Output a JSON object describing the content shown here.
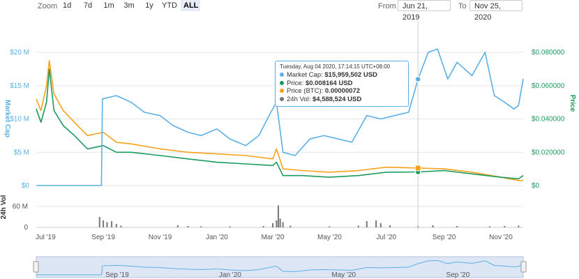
{
  "toolbar": {
    "zoom_label": "Zoom",
    "zoom_buttons": [
      "1d",
      "7d",
      "1m",
      "3m",
      "1y",
      "YTD",
      "ALL"
    ],
    "active_zoom": "ALL",
    "from_label": "From",
    "from_value": "Jun 21, 2019",
    "to_label": "To",
    "to_value": "Nov 25, 2020"
  },
  "tooltip": {
    "date": "Tuesday, Aug 04 2020, 17:14:15 UTC+08:00",
    "market_cap_label": "Market Cap:",
    "market_cap_value": "$15,959,502 USD",
    "price_label": "Price:",
    "price_value": "$0.008164 USD",
    "price_btc_label": "Price (BTC):",
    "price_btc_value": "0.00000072",
    "vol_label": "24h Vol:",
    "vol_value": "$4,588,524 USD"
  },
  "colors": {
    "market_cap": "#5ab0e6",
    "price": "#1a9b5e",
    "price_btc": "#f7a21b",
    "volume": "#777777",
    "navigator_fill": "#dce6f4"
  },
  "chart_data": {
    "type": "line",
    "x_start": "Jun 21, 2019",
    "x_end": "Nov 25, 2020",
    "x_tick_labels": [
      "Jul '19",
      "Sep '19",
      "Nov '19",
      "Jan '20",
      "Mar '20",
      "May '20",
      "Jul '20",
      "Sep '20",
      "Nov '20"
    ],
    "navigator_tick_labels": [
      "Sep '19",
      "Jan '20",
      "May '20",
      "Sep '20"
    ],
    "left_axis": {
      "label": "Market Cap",
      "ticks": [
        "$0",
        "$5 M",
        "$10 M",
        "$15 M",
        "$20 M"
      ],
      "range": [
        0,
        20000000
      ]
    },
    "right_axis": {
      "label": "Price",
      "ticks": [
        "$0",
        "$0.020000",
        "$0.040000",
        "$0.060000",
        "$0.080000"
      ],
      "range": [
        0,
        0.08
      ]
    },
    "volume_axis": {
      "label": "24h Vol",
      "ticks": [
        "0",
        "60 M"
      ],
      "range": [
        0,
        60000000
      ]
    },
    "series": [
      {
        "name": "Market Cap",
        "axis": "left",
        "points": [
          [
            "2019-06-21",
            0
          ],
          [
            "2019-07-15",
            0
          ],
          [
            "2019-08-15",
            0
          ],
          [
            "2019-08-30",
            0
          ],
          [
            "2019-08-31",
            13000000
          ],
          [
            "2019-09-15",
            13500000
          ],
          [
            "2019-10-01",
            12500000
          ],
          [
            "2019-10-15",
            11000000
          ],
          [
            "2019-11-01",
            10500000
          ],
          [
            "2019-11-15",
            9000000
          ],
          [
            "2019-12-01",
            8000000
          ],
          [
            "2019-12-15",
            7500000
          ],
          [
            "2020-01-01",
            8500000
          ],
          [
            "2020-01-15",
            7000000
          ],
          [
            "2020-02-01",
            6000000
          ],
          [
            "2020-02-15",
            7500000
          ],
          [
            "2020-02-28",
            11000000
          ],
          [
            "2020-03-05",
            12500000
          ],
          [
            "2020-03-12",
            5000000
          ],
          [
            "2020-03-25",
            4500000
          ],
          [
            "2020-04-10",
            7000000
          ],
          [
            "2020-04-25",
            7500000
          ],
          [
            "2020-05-10",
            7000000
          ],
          [
            "2020-05-25",
            6500000
          ],
          [
            "2020-06-10",
            10500000
          ],
          [
            "2020-06-25",
            10000000
          ],
          [
            "2020-07-10",
            10500000
          ],
          [
            "2020-07-25",
            11000000
          ],
          [
            "2020-08-04",
            15959502
          ],
          [
            "2020-08-15",
            20000000
          ],
          [
            "2020-08-25",
            20500000
          ],
          [
            "2020-09-05",
            16000000
          ],
          [
            "2020-09-15",
            18500000
          ],
          [
            "2020-10-01",
            16500000
          ],
          [
            "2020-10-15",
            20000000
          ],
          [
            "2020-10-25",
            13500000
          ],
          [
            "2020-11-05",
            12500000
          ],
          [
            "2020-11-15",
            11500000
          ],
          [
            "2020-11-20",
            12000000
          ],
          [
            "2020-11-25",
            16000000
          ]
        ]
      },
      {
        "name": "Price",
        "axis": "right",
        "points": [
          [
            "2019-06-21",
            0.046
          ],
          [
            "2019-06-26",
            0.038
          ],
          [
            "2019-07-02",
            0.05
          ],
          [
            "2019-07-05",
            0.07
          ],
          [
            "2019-07-10",
            0.045
          ],
          [
            "2019-07-20",
            0.036
          ],
          [
            "2019-08-01",
            0.03
          ],
          [
            "2019-08-15",
            0.022
          ],
          [
            "2019-09-01",
            0.024
          ],
          [
            "2019-09-15",
            0.02
          ],
          [
            "2019-10-01",
            0.02
          ],
          [
            "2019-11-01",
            0.018
          ],
          [
            "2019-12-01",
            0.016
          ],
          [
            "2020-01-01",
            0.014
          ],
          [
            "2020-02-01",
            0.013
          ],
          [
            "2020-03-01",
            0.012
          ],
          [
            "2020-03-05",
            0.014
          ],
          [
            "2020-03-12",
            0.006
          ],
          [
            "2020-04-01",
            0.006
          ],
          [
            "2020-05-01",
            0.005
          ],
          [
            "2020-06-01",
            0.006
          ],
          [
            "2020-07-01",
            0.008
          ],
          [
            "2020-08-04",
            0.008164
          ],
          [
            "2020-09-01",
            0.009
          ],
          [
            "2020-10-01",
            0.007
          ],
          [
            "2020-11-01",
            0.005
          ],
          [
            "2020-11-20",
            0.004
          ],
          [
            "2020-11-25",
            0.006
          ]
        ]
      },
      {
        "name": "Price (BTC)",
        "axis": "right",
        "points": [
          [
            "2019-06-21",
            0.052
          ],
          [
            "2019-06-26",
            0.045
          ],
          [
            "2019-07-02",
            0.06
          ],
          [
            "2019-07-05",
            0.075
          ],
          [
            "2019-07-10",
            0.055
          ],
          [
            "2019-07-20",
            0.045
          ],
          [
            "2019-08-01",
            0.038
          ],
          [
            "2019-08-15",
            0.03
          ],
          [
            "2019-09-01",
            0.032
          ],
          [
            "2019-09-15",
            0.026
          ],
          [
            "2019-10-01",
            0.025
          ],
          [
            "2019-11-01",
            0.022
          ],
          [
            "2019-12-01",
            0.02
          ],
          [
            "2020-01-01",
            0.019
          ],
          [
            "2020-02-01",
            0.018
          ],
          [
            "2020-03-01",
            0.016
          ],
          [
            "2020-03-05",
            0.022
          ],
          [
            "2020-03-12",
            0.01
          ],
          [
            "2020-04-01",
            0.009
          ],
          [
            "2020-05-01",
            0.008
          ],
          [
            "2020-06-01",
            0.009
          ],
          [
            "2020-07-01",
            0.011
          ],
          [
            "2020-08-04",
            0.0105
          ],
          [
            "2020-09-01",
            0.01
          ],
          [
            "2020-10-01",
            0.008
          ],
          [
            "2020-11-01",
            0.005
          ],
          [
            "2020-11-20",
            0.003
          ],
          [
            "2020-11-25",
            0.003
          ]
        ]
      },
      {
        "name": "24h Vol",
        "axis": "volume",
        "points": [
          [
            "2019-08-28",
            30000000
          ],
          [
            "2019-09-01",
            20000000
          ],
          [
            "2019-09-05",
            15000000
          ],
          [
            "2019-09-10",
            18000000
          ],
          [
            "2019-09-15",
            10000000
          ],
          [
            "2019-09-20",
            5000000
          ],
          [
            "2019-11-20",
            6000000
          ],
          [
            "2019-12-01",
            4000000
          ],
          [
            "2019-12-15",
            3000000
          ],
          [
            "2020-01-15",
            3000000
          ],
          [
            "2020-02-20",
            4000000
          ],
          [
            "2020-03-01",
            12000000
          ],
          [
            "2020-03-05",
            20000000
          ],
          [
            "2020-03-07",
            63000000
          ],
          [
            "2020-03-09",
            25000000
          ],
          [
            "2020-03-12",
            15000000
          ],
          [
            "2020-03-20",
            5000000
          ],
          [
            "2020-05-01",
            3000000
          ],
          [
            "2020-06-01",
            5000000
          ],
          [
            "2020-06-10",
            18000000
          ],
          [
            "2020-06-20",
            20000000
          ],
          [
            "2020-06-25",
            12000000
          ],
          [
            "2020-07-05",
            6000000
          ],
          [
            "2020-08-04",
            4588524
          ],
          [
            "2020-08-20",
            6000000
          ],
          [
            "2020-09-15",
            4000000
          ],
          [
            "2020-10-20",
            3000000
          ],
          [
            "2020-11-05",
            4000000
          ],
          [
            "2020-11-20",
            5000000
          ]
        ]
      }
    ],
    "highlight_date": "2020-08-04"
  }
}
